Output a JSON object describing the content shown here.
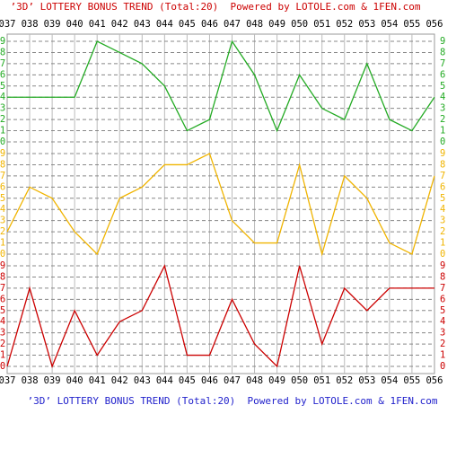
{
  "chart_data": {
    "type": "line",
    "title": "’3D’ LOTTERY BONUS TREND (Total:20)  Powered by LOTOLE.com & 1FEN.com",
    "categories": [
      "037",
      "038",
      "039",
      "040",
      "041",
      "042",
      "043",
      "044",
      "045",
      "046",
      "047",
      "048",
      "049",
      "050",
      "051",
      "052",
      "053",
      "054",
      "055",
      "056"
    ],
    "ylim": [
      0,
      9
    ],
    "yticks": [
      0,
      1,
      2,
      3,
      4,
      5,
      6,
      7,
      8,
      9
    ],
    "grid": true,
    "series": [
      {
        "color": "#22aa22",
        "values": [
          4,
          4,
          4,
          4,
          9,
          8,
          7,
          5,
          1,
          2,
          9,
          6,
          1,
          6,
          3,
          2,
          7,
          2,
          1,
          4
        ]
      },
      {
        "color": "#f0b400",
        "values": [
          2,
          6,
          5,
          2,
          0,
          5,
          6,
          8,
          8,
          9,
          3,
          1,
          1,
          8,
          0,
          7,
          5,
          1,
          0,
          7
        ]
      },
      {
        "color": "#cc0000",
        "values": [
          0,
          7,
          0,
          5,
          1,
          4,
          5,
          9,
          1,
          1,
          6,
          2,
          0,
          9,
          2,
          7,
          5,
          7,
          7,
          7
        ]
      }
    ]
  }
}
